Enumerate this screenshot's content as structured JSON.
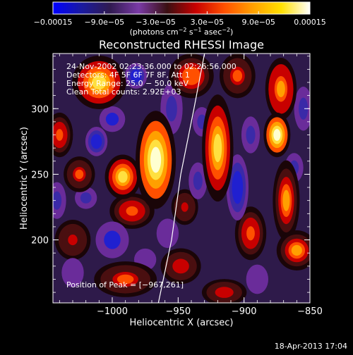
{
  "chart_data": {
    "type": "heatmap",
    "title": "Reconstructed RHESSI Image",
    "xlabel": "Heliocentric X (arcsec)",
    "ylabel": "Heliocentric Y (arcsec)",
    "xlim": [
      -1045,
      -850
    ],
    "ylim": [
      152,
      342
    ],
    "x_ticks": [
      -1000,
      -950,
      -900,
      -850
    ],
    "x_tick_labels": [
      "−1000",
      "−950",
      "−900",
      "−850"
    ],
    "y_ticks": [
      200,
      250,
      300
    ],
    "y_tick_labels": [
      "200",
      "250",
      "300"
    ],
    "colorbar": {
      "range": [
        -0.00015,
        0.00015
      ],
      "ticks": [
        -0.00015,
        -9e-05,
        -3e-05,
        3e-05,
        9e-05,
        0.00015
      ],
      "tick_labels": [
        "−0.00015",
        "−9.0e−05",
        "−3.0e−05",
        "3.0e−05",
        "9.0e−05",
        "0.00015"
      ],
      "units_main": "(photons cm",
      "units_exp1": "−2",
      "units_mid": " s",
      "units_exp2": "−1",
      "units_tail": " asec",
      "units_exp3": "−2",
      "units_close": ")",
      "colors": [
        "#0000ff",
        "#1a1aa0",
        "#301a50",
        "#7a3aa6",
        "#3a0f12",
        "#c80000",
        "#ff5000",
        "#ffa000",
        "#ffe000",
        "#ffffff"
      ]
    },
    "info": {
      "line1": "24‐Nov‐2002 02:23:36.000 to 02:26:56.000",
      "line2": "Detectors: 4F 5F 6F 7F 8F, Att 1",
      "line3": "Energy Range: 25.0 − 50.0 keV",
      "line4": "Clean     Total counts: 2.92E+03"
    },
    "peak_label": "Position of Peak = [−967,261]",
    "peak": [
      -967,
      261
    ],
    "limb": [
      [
        -965,
        152
      ],
      [
        -955,
        200
      ],
      [
        -948,
        250
      ],
      [
        -938,
        300
      ],
      [
        -930,
        342
      ]
    ],
    "blobs": [
      {
        "x": -1010,
        "y": 320,
        "sx": 12,
        "sy": 12,
        "v": 0.8
      },
      {
        "x": -967,
        "y": 261,
        "sx": 9,
        "sy": 22,
        "v": 1.0
      },
      {
        "x": -992,
        "y": 248,
        "sx": 8,
        "sy": 10,
        "v": 0.75
      },
      {
        "x": -1040,
        "y": 280,
        "sx": 6,
        "sy": 10,
        "v": 0.5
      },
      {
        "x": -1025,
        "y": 250,
        "sx": 7,
        "sy": 8,
        "v": 0.45
      },
      {
        "x": -985,
        "y": 222,
        "sx": 10,
        "sy": 8,
        "v": 0.5
      },
      {
        "x": -1030,
        "y": 200,
        "sx": 8,
        "sy": 9,
        "v": 0.35
      },
      {
        "x": -990,
        "y": 170,
        "sx": 14,
        "sy": 8,
        "v": 0.45
      },
      {
        "x": -948,
        "y": 180,
        "sx": 9,
        "sy": 8,
        "v": 0.4
      },
      {
        "x": -940,
        "y": 325,
        "sx": 10,
        "sy": 10,
        "v": 0.55
      },
      {
        "x": -920,
        "y": 270,
        "sx": 7,
        "sy": 24,
        "v": 0.8
      },
      {
        "x": -905,
        "y": 325,
        "sx": 8,
        "sy": 10,
        "v": 0.45
      },
      {
        "x": -895,
        "y": 205,
        "sx": 7,
        "sy": 12,
        "v": 0.5
      },
      {
        "x": -875,
        "y": 280,
        "sx": 6,
        "sy": 10,
        "v": 0.95
      },
      {
        "x": -872,
        "y": 315,
        "sx": 7,
        "sy": 14,
        "v": 0.65
      },
      {
        "x": -868,
        "y": 230,
        "sx": 6,
        "sy": 18,
        "v": 0.6
      },
      {
        "x": -860,
        "y": 192,
        "sx": 9,
        "sy": 9,
        "v": 0.6
      },
      {
        "x": -915,
        "y": 160,
        "sx": 10,
        "sy": 6,
        "v": 0.4
      },
      {
        "x": -945,
        "y": 225,
        "sx": 6,
        "sy": 8,
        "v": 0.3
      },
      {
        "x": -1000,
        "y": 292,
        "sx": 7,
        "sy": 7,
        "v": -0.55
      },
      {
        "x": -1012,
        "y": 275,
        "sx": 6,
        "sy": 8,
        "v": -0.6
      },
      {
        "x": -982,
        "y": 325,
        "sx": 6,
        "sy": 7,
        "v": -0.65
      },
      {
        "x": -1000,
        "y": 200,
        "sx": 9,
        "sy": 10,
        "v": -0.55
      },
      {
        "x": -1020,
        "y": 232,
        "sx": 6,
        "sy": 6,
        "v": -0.4
      },
      {
        "x": -955,
        "y": 300,
        "sx": 6,
        "sy": 14,
        "v": -0.5
      },
      {
        "x": -958,
        "y": 205,
        "sx": 6,
        "sy": 8,
        "v": -0.35
      },
      {
        "x": -935,
        "y": 245,
        "sx": 5,
        "sy": 10,
        "v": -0.45
      },
      {
        "x": -932,
        "y": 290,
        "sx": 5,
        "sy": 8,
        "v": -0.4
      },
      {
        "x": -905,
        "y": 240,
        "sx": 6,
        "sy": 18,
        "v": -0.6
      },
      {
        "x": -895,
        "y": 280,
        "sx": 5,
        "sy": 10,
        "v": -0.45
      },
      {
        "x": -890,
        "y": 170,
        "sx": 6,
        "sy": 8,
        "v": -0.35
      },
      {
        "x": -855,
        "y": 300,
        "sx": 5,
        "sy": 12,
        "v": -0.5
      },
      {
        "x": -862,
        "y": 255,
        "sx": 5,
        "sy": 8,
        "v": -0.4
      },
      {
        "x": -1030,
        "y": 175,
        "sx": 6,
        "sy": 8,
        "v": -0.35
      },
      {
        "x": -975,
        "y": 185,
        "sx": 6,
        "sy": 6,
        "v": -0.3
      },
      {
        "x": -1042,
        "y": 230,
        "sx": 5,
        "sy": 10,
        "v": -0.4
      }
    ]
  },
  "footer": {
    "timestamp": "18-Apr-2013 17:04"
  }
}
